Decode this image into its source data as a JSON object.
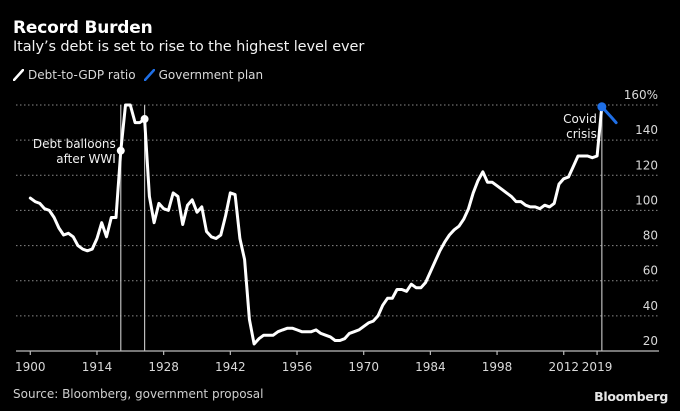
{
  "header": {
    "title": "Record Burden",
    "subtitle": "Italy’s debt is set to rise to the highest level ever"
  },
  "legend": [
    {
      "label": "Debt-to-GDP ratio",
      "color": "#ffffff",
      "icon": "line-swatch-icon"
    },
    {
      "label": "Government plan",
      "color": "#1f6fe6",
      "icon": "line-swatch-icon"
    }
  ],
  "footer": {
    "source": "Source: Bloomberg, government proposal",
    "brand": "Bloomberg"
  },
  "chart_data": {
    "type": "line",
    "title": "Record Burden",
    "subtitle": "Italy’s debt is set to rise to the highest level ever",
    "xlabel": "",
    "ylabel": "",
    "xlim": [
      1897,
      2032
    ],
    "ylim": [
      20,
      160
    ],
    "y_unit_suffix": "%",
    "grid": true,
    "legend_position": "top-left",
    "x_ticks": [
      {
        "value": 1900,
        "label": "1900"
      },
      {
        "value": 1914,
        "label": "1914"
      },
      {
        "value": 1928,
        "label": "1928"
      },
      {
        "value": 1942,
        "label": "1942"
      },
      {
        "value": 1956,
        "label": "1956"
      },
      {
        "value": 1970,
        "label": "1970"
      },
      {
        "value": 1984,
        "label": "1984"
      },
      {
        "value": 1998,
        "label": "1998"
      },
      {
        "value": 2012,
        "label": "2012"
      },
      {
        "value": 2019,
        "label": "2019"
      }
    ],
    "y_ticks": [
      {
        "value": 160,
        "label": "160%"
      },
      {
        "value": 140,
        "label": "140"
      },
      {
        "value": 120,
        "label": "120"
      },
      {
        "value": 100,
        "label": "100"
      },
      {
        "value": 80,
        "label": "80"
      },
      {
        "value": 60,
        "label": "60"
      },
      {
        "value": 40,
        "label": "40"
      },
      {
        "value": 20,
        "label": "20"
      }
    ],
    "series": [
      {
        "name": "Debt-to-GDP ratio",
        "color": "#ffffff",
        "points": [
          [
            1900,
            107
          ],
          [
            1901,
            105
          ],
          [
            1902,
            104
          ],
          [
            1903,
            101
          ],
          [
            1904,
            100
          ],
          [
            1905,
            96
          ],
          [
            1906,
            90
          ],
          [
            1907,
            86
          ],
          [
            1908,
            87
          ],
          [
            1909,
            85
          ],
          [
            1910,
            80
          ],
          [
            1911,
            78
          ],
          [
            1912,
            77
          ],
          [
            1913,
            78
          ],
          [
            1914,
            84
          ],
          [
            1915,
            93
          ],
          [
            1916,
            85
          ],
          [
            1917,
            96
          ],
          [
            1918,
            96
          ],
          [
            1919,
            134
          ],
          [
            1920,
            160
          ],
          [
            1921,
            160
          ],
          [
            1922,
            150
          ],
          [
            1923,
            150
          ],
          [
            1924,
            152
          ],
          [
            1925,
            108
          ],
          [
            1926,
            93
          ],
          [
            1927,
            104
          ],
          [
            1928,
            101
          ],
          [
            1929,
            100
          ],
          [
            1930,
            110
          ],
          [
            1931,
            108
          ],
          [
            1932,
            92
          ],
          [
            1933,
            103
          ],
          [
            1934,
            106
          ],
          [
            1935,
            99
          ],
          [
            1936,
            102
          ],
          [
            1937,
            88
          ],
          [
            1938,
            85
          ],
          [
            1939,
            84
          ],
          [
            1940,
            86
          ],
          [
            1941,
            97
          ],
          [
            1942,
            110
          ],
          [
            1943,
            109
          ],
          [
            1944,
            84
          ],
          [
            1945,
            72
          ],
          [
            1946,
            38
          ],
          [
            1947,
            24
          ],
          [
            1948,
            27
          ],
          [
            1949,
            29
          ],
          [
            1950,
            29
          ],
          [
            1951,
            29
          ],
          [
            1952,
            31
          ],
          [
            1953,
            32
          ],
          [
            1954,
            33
          ],
          [
            1955,
            33
          ],
          [
            1956,
            32
          ],
          [
            1957,
            31
          ],
          [
            1958,
            31
          ],
          [
            1959,
            31
          ],
          [
            1960,
            32
          ],
          [
            1961,
            30
          ],
          [
            1962,
            29
          ],
          [
            1963,
            28
          ],
          [
            1964,
            26
          ],
          [
            1965,
            26
          ],
          [
            1966,
            27
          ],
          [
            1967,
            30
          ],
          [
            1968,
            31
          ],
          [
            1969,
            32
          ],
          [
            1970,
            34
          ],
          [
            1971,
            36
          ],
          [
            1972,
            37
          ],
          [
            1973,
            40
          ],
          [
            1974,
            46
          ],
          [
            1975,
            50
          ],
          [
            1976,
            50
          ],
          [
            1977,
            55
          ],
          [
            1978,
            55
          ],
          [
            1979,
            54
          ],
          [
            1980,
            58
          ],
          [
            1981,
            56
          ],
          [
            1982,
            56
          ],
          [
            1983,
            59
          ],
          [
            1984,
            65
          ],
          [
            1985,
            71
          ],
          [
            1986,
            77
          ],
          [
            1987,
            82
          ],
          [
            1988,
            86
          ],
          [
            1989,
            89
          ],
          [
            1990,
            91
          ],
          [
            1991,
            95
          ],
          [
            1992,
            101
          ],
          [
            1993,
            110
          ],
          [
            1994,
            117
          ],
          [
            1995,
            122
          ],
          [
            1996,
            116
          ],
          [
            1997,
            116
          ],
          [
            1998,
            114
          ],
          [
            1999,
            112
          ],
          [
            2000,
            110
          ],
          [
            2001,
            108
          ],
          [
            2002,
            105
          ],
          [
            2003,
            105
          ],
          [
            2004,
            103
          ],
          [
            2005,
            102
          ],
          [
            2006,
            102
          ],
          [
            2007,
            101
          ],
          [
            2008,
            103
          ],
          [
            2009,
            102
          ],
          [
            2010,
            104
          ],
          [
            2011,
            115
          ],
          [
            2012,
            118
          ],
          [
            2013,
            119
          ],
          [
            2014,
            125
          ],
          [
            2015,
            131
          ],
          [
            2016,
            131
          ],
          [
            2017,
            131
          ],
          [
            2018,
            130
          ],
          [
            2019,
            131
          ],
          [
            2020,
            159
          ]
        ]
      },
      {
        "name": "Government plan",
        "color": "#1f6fe6",
        "points": [
          [
            2020,
            159
          ],
          [
            2021,
            156
          ],
          [
            2022,
            153
          ],
          [
            2023,
            150
          ]
        ]
      }
    ],
    "markers": [
      {
        "year": 1919,
        "value": 134
      },
      {
        "year": 1924,
        "value": 152
      },
      {
        "year": 2020,
        "value": 159
      }
    ],
    "reference_lines": [
      {
        "year": 1919
      },
      {
        "year": 1924
      },
      {
        "year": 2020
      }
    ],
    "annotations": [
      {
        "lines": [
          "Debt balloons",
          "after WWI"
        ],
        "year": 1919,
        "value": 128,
        "align": "right"
      },
      {
        "lines": [
          "Covid",
          "crisis"
        ],
        "year": 2020,
        "value": 148,
        "align": "right"
      }
    ]
  }
}
